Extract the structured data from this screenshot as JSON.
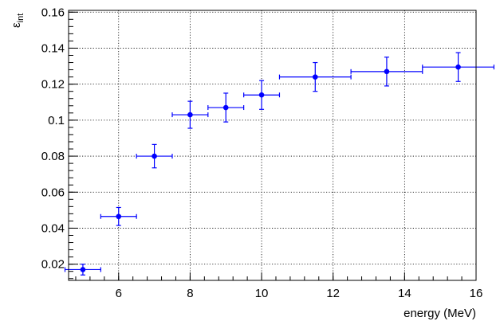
{
  "chart_data": {
    "type": "scatter",
    "xlabel": "energy (MeV)",
    "ylabel_base": "ε",
    "ylabel_sub": "int",
    "xlim": [
      4.6,
      16
    ],
    "ylim": [
      0.011,
      0.161
    ],
    "x_major_ticks": [
      6,
      8,
      10,
      12,
      14,
      16
    ],
    "y_major_ticks": [
      0.02,
      0.04,
      0.06,
      0.08,
      0.1,
      0.12,
      0.14,
      0.16
    ],
    "x_tick_labels": [
      "6",
      "8",
      "10",
      "12",
      "14",
      "16"
    ],
    "y_tick_labels": [
      "0.02",
      "0.04",
      "0.06",
      "0.08",
      "0.1",
      "0.12",
      "0.14",
      "0.16"
    ],
    "x_minor_step": 0.4,
    "y_minor_step": 0.004,
    "grid": true,
    "marker_color": "#0000ff",
    "points": [
      {
        "x": 5.0,
        "y": 0.017,
        "xerr": 0.5,
        "yerr": 0.003
      },
      {
        "x": 6.0,
        "y": 0.0465,
        "xerr": 0.5,
        "yerr": 0.005
      },
      {
        "x": 7.0,
        "y": 0.08,
        "xerr": 0.5,
        "yerr": 0.0065
      },
      {
        "x": 8.0,
        "y": 0.103,
        "xerr": 0.5,
        "yerr": 0.0075
      },
      {
        "x": 9.0,
        "y": 0.107,
        "xerr": 0.5,
        "yerr": 0.008
      },
      {
        "x": 10.0,
        "y": 0.114,
        "xerr": 0.5,
        "yerr": 0.008
      },
      {
        "x": 11.5,
        "y": 0.124,
        "xerr": 1.0,
        "yerr": 0.008
      },
      {
        "x": 13.5,
        "y": 0.127,
        "xerr": 1.0,
        "yerr": 0.008
      },
      {
        "x": 15.5,
        "y": 0.1295,
        "xerr": 1.0,
        "yerr": 0.008
      }
    ]
  }
}
